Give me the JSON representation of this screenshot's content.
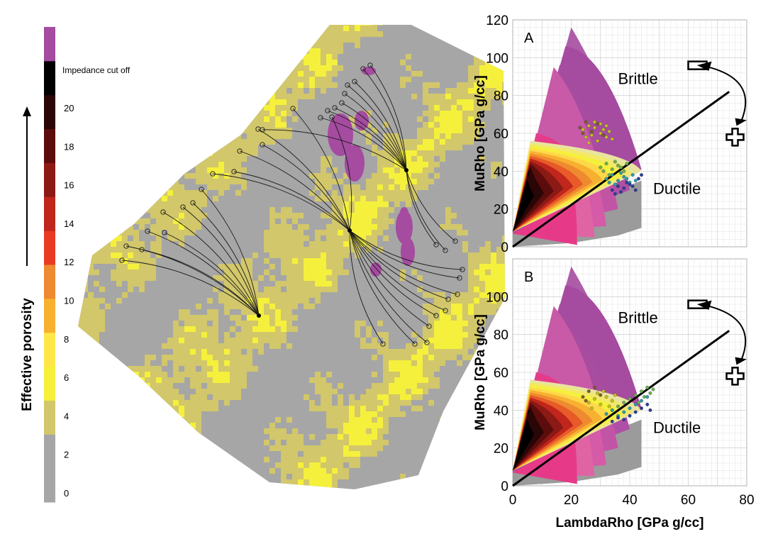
{
  "legend": {
    "axis_label": "Effective porosity",
    "top_label": "Impedance cut off",
    "ticks": [
      "0",
      "2",
      "4",
      "6",
      "8",
      "10",
      "12",
      "14",
      "16",
      "18",
      "20"
    ],
    "colors": [
      "#a6a6a6",
      "#a6a6a6",
      "#d2c76a",
      "#f5f03c",
      "#ffe74a",
      "#f8b030",
      "#ee8a30",
      "#e83c22",
      "#c0261c",
      "#8c1a14",
      "#5c0c0c",
      "#2a0606",
      "#000000",
      "#a54ba0"
    ]
  },
  "map": {
    "colors": {
      "background_gray": "#a6a6a6",
      "porous_yellow": "#d2c76a",
      "bright_yellow": "#f5f03c",
      "cutoff_magenta": "#a54ba0"
    },
    "icons": [
      "well-trajectory-icon",
      "well-head-icon"
    ]
  },
  "chart_data": [
    {
      "type": "scatter",
      "panel_label": "A",
      "xlabel": "",
      "ylabel": "MuRho [GPa g/cc]",
      "xlim": [
        0,
        80
      ],
      "ylim": [
        0,
        120
      ],
      "x_ticks": [],
      "y_ticks": [
        "0",
        "20",
        "40",
        "60",
        "80",
        "100",
        "120"
      ],
      "annotations": [
        "Brittle",
        "Ductile"
      ],
      "series": [
        {
          "color": "#c8c020",
          "points": [
            [
              24,
              62
            ],
            [
              26,
              64
            ],
            [
              28,
              63
            ],
            [
              30,
              60
            ],
            [
              32,
              58
            ],
            [
              29,
              56
            ],
            [
              27,
              59
            ],
            [
              31,
              62
            ],
            [
              33,
              61
            ],
            [
              25,
              58
            ],
            [
              28,
              66
            ],
            [
              30,
              65
            ],
            [
              34,
              57
            ],
            [
              26,
              55
            ],
            [
              32,
              64
            ]
          ]
        },
        {
          "color": "#7c5c2c",
          "points": [
            [
              23,
              63
            ],
            [
              25,
              66
            ],
            [
              27,
              61
            ],
            [
              29,
              65
            ],
            [
              31,
              59
            ],
            [
              24,
              60
            ]
          ]
        },
        {
          "color": "#6cb04c",
          "points": [
            [
              30,
              42
            ],
            [
              32,
              44
            ],
            [
              34,
              41
            ],
            [
              36,
              43
            ],
            [
              38,
              40
            ],
            [
              33,
              38
            ],
            [
              35,
              45
            ],
            [
              31,
              40
            ],
            [
              37,
              42
            ],
            [
              39,
              44
            ]
          ]
        },
        {
          "color": "#2c9ca8",
          "points": [
            [
              32,
              36
            ],
            [
              34,
              38
            ],
            [
              36,
              35
            ],
            [
              38,
              37
            ],
            [
              40,
              34
            ],
            [
              35,
              33
            ],
            [
              37,
              39
            ],
            [
              33,
              34
            ],
            [
              39,
              36
            ],
            [
              41,
              38
            ],
            [
              42,
              35
            ]
          ]
        },
        {
          "color": "#2c3c9c",
          "points": [
            [
              34,
              30
            ],
            [
              36,
              32
            ],
            [
              38,
              31
            ],
            [
              40,
              33
            ],
            [
              42,
              30
            ],
            [
              37,
              29
            ],
            [
              39,
              34
            ],
            [
              41,
              32
            ],
            [
              43,
              36
            ],
            [
              44,
              38
            ],
            [
              35,
              28
            ]
          ]
        }
      ]
    },
    {
      "type": "scatter",
      "panel_label": "B",
      "xlabel": "LambdaRho [GPa g/cc]",
      "ylabel": "MuRho [GPa g/cc]",
      "xlim": [
        0,
        80
      ],
      "ylim": [
        0,
        120
      ],
      "x_ticks": [
        "0",
        "20",
        "40",
        "60",
        "80"
      ],
      "y_ticks": [
        "0",
        "20",
        "40",
        "60",
        "80",
        "100"
      ],
      "annotations": [
        "Brittle",
        "Ductile"
      ],
      "series": [
        {
          "color": "#c8c020",
          "points": [
            [
              26,
              44
            ],
            [
              28,
              46
            ],
            [
              30,
              43
            ],
            [
              32,
              47
            ],
            [
              34,
              45
            ],
            [
              29,
              49
            ],
            [
              31,
              50
            ],
            [
              33,
              42
            ],
            [
              27,
              41
            ],
            [
              35,
              48
            ]
          ]
        },
        {
          "color": "#7c5c2c",
          "points": [
            [
              24,
              47
            ],
            [
              26,
              50
            ],
            [
              28,
              52
            ],
            [
              30,
              48
            ],
            [
              25,
              45
            ]
          ]
        },
        {
          "color": "#6cb04c",
          "points": [
            [
              34,
              40
            ],
            [
              36,
              42
            ],
            [
              38,
              44
            ],
            [
              40,
              46
            ],
            [
              42,
              48
            ],
            [
              44,
              50
            ],
            [
              46,
              52
            ],
            [
              45,
              47
            ],
            [
              43,
              44
            ],
            [
              47,
              49
            ],
            [
              48,
              51
            ]
          ]
        },
        {
          "color": "#2c9ca8",
          "points": [
            [
              32,
              38
            ],
            [
              34,
              40
            ],
            [
              36,
              37
            ],
            [
              38,
              39
            ],
            [
              40,
              41
            ],
            [
              42,
              43
            ],
            [
              44,
              45
            ],
            [
              46,
              47
            ]
          ]
        },
        {
          "color": "#2c3c9c",
          "points": [
            [
              34,
              34
            ],
            [
              36,
              36
            ],
            [
              38,
              35
            ],
            [
              40,
              37
            ],
            [
              42,
              39
            ],
            [
              44,
              41
            ],
            [
              46,
              43
            ],
            [
              47,
              40
            ]
          ]
        }
      ]
    }
  ]
}
